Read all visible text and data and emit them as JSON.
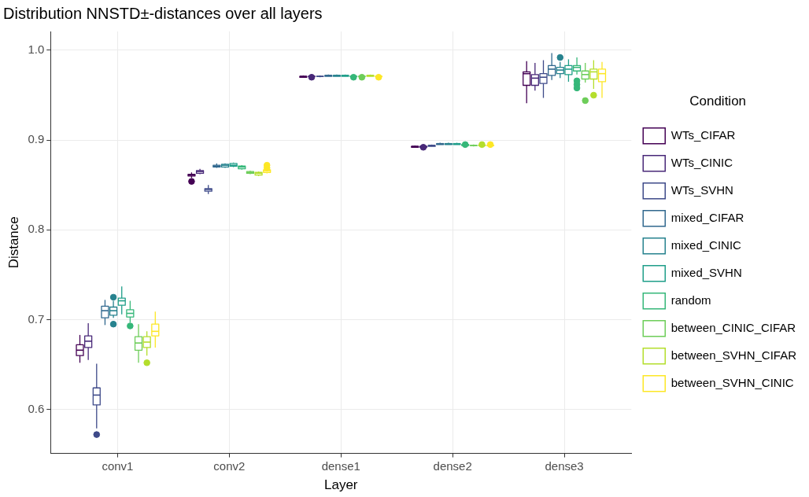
{
  "chart_data": {
    "type": "box",
    "title": "Distribution NNSTD±-distances over all layers",
    "xlabel": "Layer",
    "ylabel": "Distance",
    "legend_title": "Condition",
    "legend": "right",
    "grid": true,
    "categories": [
      "conv1",
      "conv2",
      "dense1",
      "dense2",
      "dense3"
    ],
    "ylim": [
      0.551,
      1.021
    ],
    "yticks": [
      0.6,
      0.7,
      0.8,
      0.9,
      {
        "value": 1,
        "label": "1.0"
      }
    ],
    "series": [
      {
        "name": "WTs_CIFAR",
        "color": "#440154",
        "boxes": [
          {
            "low": 0.652,
            "q1": 0.66,
            "median": 0.666,
            "q3": 0.672,
            "high": 0.683
          },
          {
            "low": 0.858,
            "q1": 0.86,
            "median": 0.861,
            "q3": 0.862,
            "high": 0.864,
            "outliers": [
              0.854
            ]
          },
          {
            "low": 0.97,
            "q1": 0.97,
            "median": 0.971,
            "q3": 0.971,
            "high": 0.972
          },
          {
            "low": 0.892,
            "q1": 0.892,
            "median": 0.893,
            "q3": 0.893,
            "high": 0.894
          },
          {
            "low": 0.941,
            "q1": 0.961,
            "median": 0.974,
            "q3": 0.976,
            "high": 0.988
          }
        ]
      },
      {
        "name": "WTs_CINIC",
        "color": "#482878",
        "boxes": [
          {
            "low": 0.655,
            "q1": 0.669,
            "median": 0.676,
            "q3": 0.682,
            "high": 0.696
          },
          {
            "low": 0.862,
            "q1": 0.863,
            "median": 0.865,
            "q3": 0.866,
            "high": 0.868
          },
          {
            "low": 0.97,
            "q1": 0.971,
            "median": 0.971,
            "q3": 0.971,
            "high": 0.972,
            "outliers": [
              0.97
            ]
          },
          {
            "low": 0.892,
            "q1": 0.892,
            "median": 0.893,
            "q3": 0.893,
            "high": 0.894,
            "outliers": [
              0.892
            ]
          },
          {
            "low": 0.955,
            "q1": 0.961,
            "median": 0.969,
            "q3": 0.973,
            "high": 0.986
          }
        ]
      },
      {
        "name": "WTs_SVHN",
        "color": "#3e4a89",
        "boxes": [
          {
            "low": 0.579,
            "q1": 0.605,
            "median": 0.616,
            "q3": 0.624,
            "high": 0.651,
            "outliers": [
              0.572
            ]
          },
          {
            "low": 0.84,
            "q1": 0.843,
            "median": 0.845,
            "q3": 0.846,
            "high": 0.85
          },
          {
            "low": 0.97,
            "q1": 0.971,
            "median": 0.971,
            "q3": 0.971,
            "high": 0.972
          },
          {
            "low": 0.893,
            "q1": 0.893,
            "median": 0.894,
            "q3": 0.894,
            "high": 0.895
          },
          {
            "low": 0.947,
            "q1": 0.963,
            "median": 0.97,
            "q3": 0.974,
            "high": 0.989
          }
        ]
      },
      {
        "name": "mixed_CIFAR",
        "color": "#31688e",
        "boxes": [
          {
            "low": 0.694,
            "q1": 0.702,
            "median": 0.71,
            "q3": 0.715,
            "high": 0.722
          },
          {
            "low": 0.869,
            "q1": 0.87,
            "median": 0.871,
            "q3": 0.872,
            "high": 0.874
          },
          {
            "low": 0.971,
            "q1": 0.971,
            "median": 0.972,
            "q3": 0.972,
            "high": 0.973
          },
          {
            "low": 0.895,
            "q1": 0.895,
            "median": 0.896,
            "q3": 0.896,
            "high": 0.897
          },
          {
            "low": 0.967,
            "q1": 0.972,
            "median": 0.979,
            "q3": 0.983,
            "high": 0.997
          }
        ]
      },
      {
        "name": "mixed_CINIC",
        "color": "#26828e",
        "boxes": [
          {
            "low": 0.702,
            "q1": 0.705,
            "median": 0.71,
            "q3": 0.714,
            "high": 0.721,
            "outliers": [
              0.725,
              0.695
            ]
          },
          {
            "low": 0.869,
            "q1": 0.87,
            "median": 0.872,
            "q3": 0.873,
            "high": 0.874
          },
          {
            "low": 0.971,
            "q1": 0.971,
            "median": 0.972,
            "q3": 0.972,
            "high": 0.973
          },
          {
            "low": 0.895,
            "q1": 0.895,
            "median": 0.896,
            "q3": 0.896,
            "high": 0.897
          },
          {
            "low": 0.969,
            "q1": 0.974,
            "median": 0.978,
            "q3": 0.981,
            "high": 0.987,
            "outliers": [
              0.992
            ]
          }
        ]
      },
      {
        "name": "mixed_SVHN",
        "color": "#1f9e89",
        "boxes": [
          {
            "low": 0.706,
            "q1": 0.716,
            "median": 0.721,
            "q3": 0.724,
            "high": 0.737
          },
          {
            "low": 0.87,
            "q1": 0.871,
            "median": 0.872,
            "q3": 0.874,
            "high": 0.875
          },
          {
            "low": 0.971,
            "q1": 0.971,
            "median": 0.972,
            "q3": 0.972,
            "high": 0.973
          },
          {
            "low": 0.895,
            "q1": 0.895,
            "median": 0.896,
            "q3": 0.896,
            "high": 0.897
          },
          {
            "low": 0.965,
            "q1": 0.973,
            "median": 0.979,
            "q3": 0.983,
            "high": 0.99
          }
        ]
      },
      {
        "name": "random",
        "color": "#35b779",
        "boxes": [
          {
            "low": 0.697,
            "q1": 0.703,
            "median": 0.707,
            "q3": 0.711,
            "high": 0.721,
            "outliers": [
              0.693
            ]
          },
          {
            "low": 0.867,
            "q1": 0.868,
            "median": 0.87,
            "q3": 0.871,
            "high": 0.872
          },
          {
            "low": 0.97,
            "q1": 0.971,
            "median": 0.971,
            "q3": 0.971,
            "high": 0.972,
            "outliers": [
              0.97
            ]
          },
          {
            "low": 0.894,
            "q1": 0.894,
            "median": 0.895,
            "q3": 0.895,
            "high": 0.896,
            "outliers": [
              0.895
            ]
          },
          {
            "low": 0.973,
            "q1": 0.977,
            "median": 0.981,
            "q3": 0.983,
            "high": 0.992,
            "outliers": [
              0.966,
              0.962,
              0.958
            ]
          }
        ]
      },
      {
        "name": "between_CINIC_CIFAR",
        "color": "#6dcd59",
        "boxes": [
          {
            "low": 0.652,
            "q1": 0.666,
            "median": 0.674,
            "q3": 0.681,
            "high": 0.695
          },
          {
            "low": 0.862,
            "q1": 0.863,
            "median": 0.864,
            "q3": 0.865,
            "high": 0.866
          },
          {
            "low": 0.97,
            "q1": 0.971,
            "median": 0.971,
            "q3": 0.971,
            "high": 0.972,
            "outliers": [
              0.97
            ]
          },
          {
            "low": 0.893,
            "q1": 0.894,
            "median": 0.894,
            "q3": 0.894,
            "high": 0.895
          },
          {
            "low": 0.964,
            "q1": 0.968,
            "median": 0.973,
            "q3": 0.977,
            "high": 0.986,
            "outliers": [
              0.944
            ]
          }
        ]
      },
      {
        "name": "between_SVHN_CIFAR",
        "color": "#b4de2c",
        "boxes": [
          {
            "low": 0.66,
            "q1": 0.669,
            "median": 0.675,
            "q3": 0.681,
            "high": 0.687,
            "outliers": [
              0.652
            ]
          },
          {
            "low": 0.86,
            "q1": 0.861,
            "median": 0.863,
            "q3": 0.864,
            "high": 0.865
          },
          {
            "low": 0.971,
            "q1": 0.971,
            "median": 0.972,
            "q3": 0.972,
            "high": 0.973
          },
          {
            "low": 0.893,
            "q1": 0.894,
            "median": 0.894,
            "q3": 0.894,
            "high": 0.895,
            "outliers": [
              0.895
            ]
          },
          {
            "low": 0.957,
            "q1": 0.968,
            "median": 0.976,
            "q3": 0.979,
            "high": 0.989,
            "outliers": [
              0.95
            ]
          }
        ]
      },
      {
        "name": "between_SVHN_CINIC",
        "color": "#fde725",
        "boxes": [
          {
            "low": 0.669,
            "q1": 0.682,
            "median": 0.687,
            "q3": 0.695,
            "high": 0.709
          },
          {
            "low": 0.863,
            "q1": 0.864,
            "median": 0.866,
            "q3": 0.867,
            "high": 0.868,
            "outliers": [
              0.872,
              0.869
            ]
          },
          {
            "low": 0.97,
            "q1": 0.971,
            "median": 0.971,
            "q3": 0.971,
            "high": 0.972,
            "outliers": [
              0.97
            ]
          },
          {
            "low": 0.893,
            "q1": 0.894,
            "median": 0.894,
            "q3": 0.894,
            "high": 0.895,
            "outliers": [
              0.895
            ]
          },
          {
            "low": 0.947,
            "q1": 0.965,
            "median": 0.974,
            "q3": 0.979,
            "high": 0.987
          }
        ]
      }
    ]
  }
}
